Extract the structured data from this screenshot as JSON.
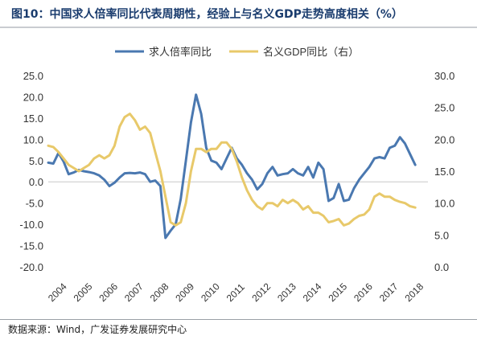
{
  "header": {
    "title": "图10：中国求人倍率同比代表周期性，经验上与名义GDP走势高度相关（%）"
  },
  "source": {
    "text": "数据来源：Wind，广发证券发展研究中心"
  },
  "colors": {
    "series1": "#4a78b0",
    "series2": "#e8c96a",
    "title": "#1a3c6e"
  },
  "chart_data": {
    "type": "line",
    "legend_position": "top-center",
    "grid": false,
    "x_ticks": [
      "2004",
      "2005",
      "2006",
      "2007",
      "2008",
      "2009",
      "2010",
      "2011",
      "2012",
      "2013",
      "2014",
      "2015",
      "2016",
      "2017",
      "2018"
    ],
    "y_left": {
      "ylim": [
        -20,
        25
      ],
      "ticks": [
        "25.0",
        "20.0",
        "15.0",
        "10.0",
        "5.0",
        "0.0",
        "-5.0",
        "-10.0",
        "-15.0",
        "-20.0"
      ]
    },
    "y_right": {
      "ylim": [
        0,
        30
      ],
      "ticks": [
        "30.0",
        "25.0",
        "20.0",
        "15.0",
        "10.0",
        "5.0",
        "0.0"
      ]
    },
    "series": [
      {
        "name": "求人倍率同比",
        "axis": "left",
        "points": [
          [
            2004.0,
            4.5
          ],
          [
            2004.2,
            4.3
          ],
          [
            2004.4,
            6.8
          ],
          [
            2004.6,
            4.8
          ],
          [
            2004.8,
            1.8
          ],
          [
            2005.0,
            2.2
          ],
          [
            2005.2,
            2.8
          ],
          [
            2005.4,
            2.5
          ],
          [
            2005.6,
            2.3
          ],
          [
            2005.8,
            2.0
          ],
          [
            2006.0,
            1.5
          ],
          [
            2006.2,
            0.5
          ],
          [
            2006.4,
            -1.0
          ],
          [
            2006.6,
            -0.2
          ],
          [
            2006.8,
            1.0
          ],
          [
            2007.0,
            2.0
          ],
          [
            2007.2,
            2.1
          ],
          [
            2007.4,
            2.0
          ],
          [
            2007.6,
            2.2
          ],
          [
            2007.8,
            1.8
          ],
          [
            2008.0,
            0.0
          ],
          [
            2008.2,
            0.3
          ],
          [
            2008.4,
            -1.0
          ],
          [
            2008.6,
            -13.2
          ],
          [
            2008.8,
            -11.5
          ],
          [
            2009.0,
            -10.0
          ],
          [
            2009.2,
            -4.0
          ],
          [
            2009.4,
            5.0
          ],
          [
            2009.6,
            14.0
          ],
          [
            2009.8,
            20.5
          ],
          [
            2010.0,
            16.0
          ],
          [
            2010.2,
            8.0
          ],
          [
            2010.4,
            5.0
          ],
          [
            2010.6,
            4.5
          ],
          [
            2010.8,
            3.0
          ],
          [
            2011.0,
            5.5
          ],
          [
            2011.2,
            8.0
          ],
          [
            2011.4,
            5.5
          ],
          [
            2011.6,
            4.0
          ],
          [
            2011.8,
            2.0
          ],
          [
            2012.0,
            0.5
          ],
          [
            2012.2,
            -1.8
          ],
          [
            2012.4,
            -0.5
          ],
          [
            2012.6,
            2.0
          ],
          [
            2012.8,
            3.5
          ],
          [
            2013.0,
            1.5
          ],
          [
            2013.2,
            1.8
          ],
          [
            2013.4,
            2.0
          ],
          [
            2013.6,
            3.0
          ],
          [
            2013.8,
            2.0
          ],
          [
            2014.0,
            1.5
          ],
          [
            2014.2,
            3.5
          ],
          [
            2014.4,
            1.0
          ],
          [
            2014.6,
            4.5
          ],
          [
            2014.8,
            3.0
          ],
          [
            2015.0,
            -4.5
          ],
          [
            2015.2,
            -3.8
          ],
          [
            2015.4,
            -0.5
          ],
          [
            2015.6,
            -4.5
          ],
          [
            2015.8,
            -4.2
          ],
          [
            2016.0,
            -1.5
          ],
          [
            2016.2,
            0.5
          ],
          [
            2016.4,
            2.0
          ],
          [
            2016.6,
            3.5
          ],
          [
            2016.8,
            5.5
          ],
          [
            2017.0,
            5.8
          ],
          [
            2017.2,
            5.5
          ],
          [
            2017.4,
            8.0
          ],
          [
            2017.6,
            8.5
          ],
          [
            2017.8,
            10.5
          ],
          [
            2018.0,
            9.0
          ],
          [
            2018.2,
            6.5
          ],
          [
            2018.4,
            4.0
          ]
        ]
      },
      {
        "name": "名义GDP同比（右）",
        "axis": "right",
        "points": [
          [
            2004.0,
            19.0
          ],
          [
            2004.2,
            18.8
          ],
          [
            2004.4,
            18.0
          ],
          [
            2004.6,
            17.0
          ],
          [
            2004.8,
            16.0
          ],
          [
            2005.0,
            15.5
          ],
          [
            2005.2,
            15.0
          ],
          [
            2005.4,
            15.5
          ],
          [
            2005.6,
            16.0
          ],
          [
            2005.8,
            17.0
          ],
          [
            2006.0,
            17.5
          ],
          [
            2006.2,
            17.0
          ],
          [
            2006.4,
            17.5
          ],
          [
            2006.6,
            19.0
          ],
          [
            2006.8,
            22.0
          ],
          [
            2007.0,
            23.5
          ],
          [
            2007.2,
            24.0
          ],
          [
            2007.4,
            23.0
          ],
          [
            2007.6,
            21.5
          ],
          [
            2007.8,
            22.0
          ],
          [
            2008.0,
            21.0
          ],
          [
            2008.2,
            18.0
          ],
          [
            2008.4,
            15.0
          ],
          [
            2008.6,
            11.0
          ],
          [
            2008.8,
            7.0
          ],
          [
            2009.0,
            6.5
          ],
          [
            2009.2,
            7.0
          ],
          [
            2009.4,
            10.0
          ],
          [
            2009.6,
            15.0
          ],
          [
            2009.8,
            18.5
          ],
          [
            2010.0,
            18.5
          ],
          [
            2010.2,
            18.0
          ],
          [
            2010.4,
            18.5
          ],
          [
            2010.6,
            18.5
          ],
          [
            2010.8,
            19.5
          ],
          [
            2011.0,
            19.5
          ],
          [
            2011.2,
            18.5
          ],
          [
            2011.4,
            16.5
          ],
          [
            2011.6,
            14.0
          ],
          [
            2011.8,
            12.0
          ],
          [
            2012.0,
            10.5
          ],
          [
            2012.2,
            9.5
          ],
          [
            2012.4,
            9.0
          ],
          [
            2012.6,
            10.0
          ],
          [
            2012.8,
            10.0
          ],
          [
            2013.0,
            9.5
          ],
          [
            2013.2,
            10.5
          ],
          [
            2013.4,
            10.0
          ],
          [
            2013.6,
            10.5
          ],
          [
            2013.8,
            10.0
          ],
          [
            2014.0,
            9.0
          ],
          [
            2014.2,
            9.5
          ],
          [
            2014.4,
            8.5
          ],
          [
            2014.6,
            8.5
          ],
          [
            2014.8,
            8.0
          ],
          [
            2015.0,
            7.0
          ],
          [
            2015.2,
            7.2
          ],
          [
            2015.4,
            7.5
          ],
          [
            2015.6,
            6.5
          ],
          [
            2015.8,
            6.8
          ],
          [
            2016.0,
            7.5
          ],
          [
            2016.2,
            8.0
          ],
          [
            2016.4,
            8.2
          ],
          [
            2016.6,
            9.0
          ],
          [
            2016.8,
            11.0
          ],
          [
            2017.0,
            11.5
          ],
          [
            2017.2,
            11.0
          ],
          [
            2017.4,
            11.0
          ],
          [
            2017.6,
            10.5
          ],
          [
            2017.8,
            10.2
          ],
          [
            2018.0,
            10.0
          ],
          [
            2018.2,
            9.5
          ],
          [
            2018.4,
            9.3
          ]
        ]
      }
    ]
  }
}
